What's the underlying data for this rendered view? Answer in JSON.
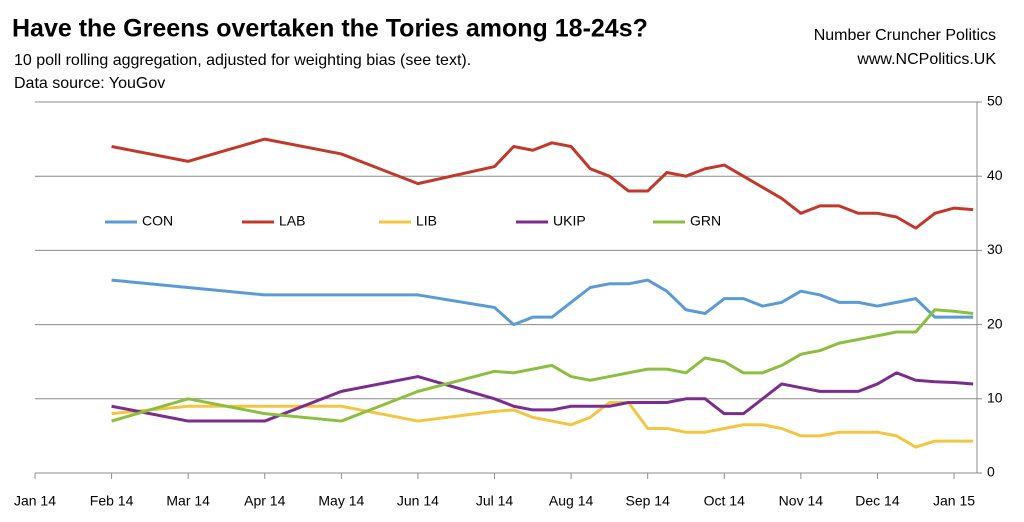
{
  "chart_data": {
    "type": "line",
    "title": "Have the Greens overtaken the Tories among 18-24s?",
    "subtitle": "10 poll rolling aggregation, adjusted for weighting bias (see text).",
    "source": "Data source: YouGov",
    "credit": "Number Cruncher Politics",
    "website": "www.NCPolitics.UK",
    "x": [
      1,
      2,
      3,
      4,
      5,
      6,
      6.25,
      6.5,
      6.75,
      7,
      7.25,
      7.5,
      7.75,
      8,
      8.25,
      8.5,
      8.75,
      9,
      9.25,
      9.5,
      9.75,
      10,
      10.25,
      10.5,
      10.75,
      11,
      11.25,
      11.5,
      11.75,
      12,
      12.25
    ],
    "xlim": [
      0,
      12.3
    ],
    "xticks": [
      {
        "value": 0,
        "label": "Jan 14"
      },
      {
        "value": 1,
        "label": "Feb 14"
      },
      {
        "value": 2,
        "label": "Mar 14"
      },
      {
        "value": 3,
        "label": "Apr 14"
      },
      {
        "value": 4,
        "label": "May 14"
      },
      {
        "value": 5,
        "label": "Jun 14"
      },
      {
        "value": 6,
        "label": "Jul 14"
      },
      {
        "value": 7,
        "label": "Aug 14"
      },
      {
        "value": 8,
        "label": "Sep 14"
      },
      {
        "value": 9,
        "label": "Oct 14"
      },
      {
        "value": 10,
        "label": "Nov 14"
      },
      {
        "value": 11,
        "label": "Dec 14"
      },
      {
        "value": 12,
        "label": "Jan 15"
      }
    ],
    "ylim": [
      0,
      50
    ],
    "yticks": [
      0,
      10,
      20,
      30,
      40,
      50
    ],
    "y_axis_side": "right",
    "grid": true,
    "legend": "center-left",
    "series": [
      {
        "name": "CON",
        "color": "#5b9bd5",
        "values": [
          26,
          25,
          24,
          24,
          24,
          22.3,
          20,
          21,
          21,
          23,
          25,
          25.5,
          25.5,
          26,
          24.5,
          22,
          21.5,
          23.5,
          23.5,
          22.5,
          23,
          24.5,
          24,
          23,
          23,
          22.5,
          23,
          23.5,
          21,
          21,
          21
        ]
      },
      {
        "name": "LAB",
        "color": "#c0392b",
        "values": [
          44,
          42,
          45,
          43,
          39,
          41.3,
          44,
          43.5,
          44.5,
          44,
          41,
          40,
          38,
          38,
          40.5,
          40,
          41,
          41.5,
          40,
          38.5,
          37,
          35,
          36,
          36,
          35,
          35,
          34.5,
          33,
          35,
          35.7,
          35.5
        ]
      },
      {
        "name": "LIB",
        "color": "#f4c542",
        "values": [
          8,
          9,
          9,
          9,
          7,
          8.3,
          8.5,
          7.5,
          7,
          6.5,
          7.5,
          9.5,
          9.5,
          6,
          6,
          5.5,
          5.5,
          6,
          6.5,
          6.5,
          6,
          5,
          5,
          5.5,
          5.5,
          5.5,
          5,
          3.5,
          4.3,
          4.3,
          4.3
        ]
      },
      {
        "name": "UKIP",
        "color": "#7b2d8e",
        "values": [
          9,
          7,
          7,
          11,
          13,
          10,
          9,
          8.5,
          8.5,
          9,
          9,
          9,
          9.5,
          9.5,
          9.5,
          10,
          10,
          8,
          8,
          10,
          12,
          11.5,
          11,
          11,
          11,
          12,
          13.5,
          12.5,
          12.3,
          12.2,
          12
        ]
      },
      {
        "name": "GRN",
        "color": "#8cbf3f",
        "values": [
          7,
          10,
          8,
          7,
          11,
          13.7,
          13.5,
          14,
          14.5,
          13,
          12.5,
          13,
          13.5,
          14,
          14,
          13.5,
          15.5,
          15,
          13.5,
          13.5,
          14.5,
          16,
          16.5,
          17.5,
          18,
          18.5,
          19,
          19,
          22,
          21.8,
          21.5
        ]
      }
    ]
  }
}
